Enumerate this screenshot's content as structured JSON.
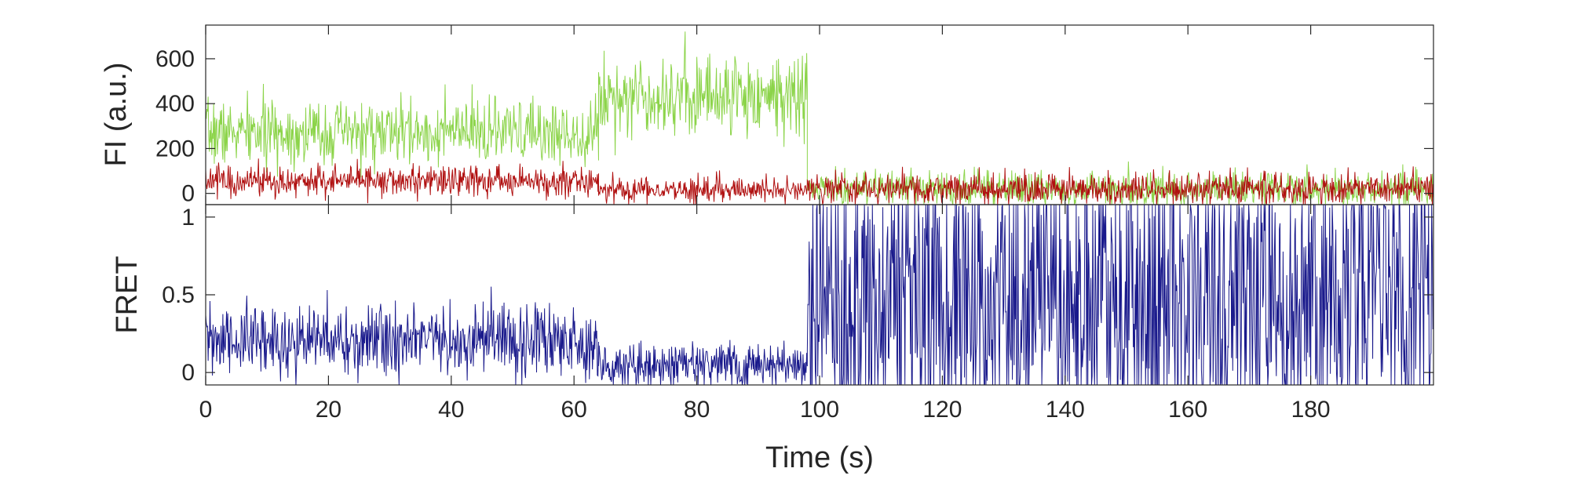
{
  "chart_data": [
    {
      "type": "line",
      "ylabel": "FI (a.u.)",
      "xlabel": "",
      "xlim": [
        0,
        200
      ],
      "ylim": [
        -50,
        750
      ],
      "yticks": [
        0,
        200,
        400,
        600
      ],
      "ytick_labels": [
        "0",
        "200",
        "400",
        "600"
      ],
      "xticks": [
        0,
        20,
        40,
        60,
        80,
        100,
        120,
        140,
        160,
        180
      ],
      "grid": false,
      "noisy_signal": true,
      "series": [
        {
          "color": "#8cd44a",
          "segments": [
            {
              "x": [
                0,
                64
              ],
              "y": [
                270,
                270
              ],
              "noise_sd": 70
            },
            {
              "x": [
                64,
                98
              ],
              "y": [
                440,
                440
              ],
              "noise_sd": 90
            },
            {
              "x": [
                98,
                200
              ],
              "y": [
                20,
                20
              ],
              "noise_sd": 40
            }
          ]
        },
        {
          "color": "#b01010",
          "segments": [
            {
              "x": [
                0,
                64
              ],
              "y": [
                55,
                55
              ],
              "noise_sd": 35
            },
            {
              "x": [
                64,
                98
              ],
              "y": [
                15,
                15
              ],
              "noise_sd": 28
            },
            {
              "x": [
                98,
                200
              ],
              "y": [
                20,
                20
              ],
              "noise_sd": 35
            }
          ]
        }
      ]
    },
    {
      "type": "line",
      "ylabel": "FRET",
      "xlabel": "Time (s)",
      "xlim": [
        0,
        200
      ],
      "ylim": [
        -0.08,
        1.08
      ],
      "yticks": [
        0,
        0.5,
        1
      ],
      "ytick_labels": [
        "0",
        "0.5",
        "1"
      ],
      "xticks": [
        0,
        20,
        40,
        60,
        80,
        100,
        120,
        140,
        160,
        180
      ],
      "xtick_labels": [
        "0",
        "20",
        "40",
        "60",
        "80",
        "100",
        "120",
        "140",
        "160",
        "180"
      ],
      "grid": false,
      "noisy_signal": true,
      "series": [
        {
          "color": "#1a1a8c",
          "segments": [
            {
              "x": [
                0,
                64
              ],
              "y": [
                0.2,
                0.2
              ],
              "noise_sd": 0.12
            },
            {
              "x": [
                64,
                98
              ],
              "y": [
                0.05,
                0.05
              ],
              "noise_sd": 0.07
            },
            {
              "x": [
                98,
                200
              ],
              "y": [
                0.5,
                0.5
              ],
              "noise_sd": 0.6
            }
          ]
        }
      ]
    }
  ]
}
